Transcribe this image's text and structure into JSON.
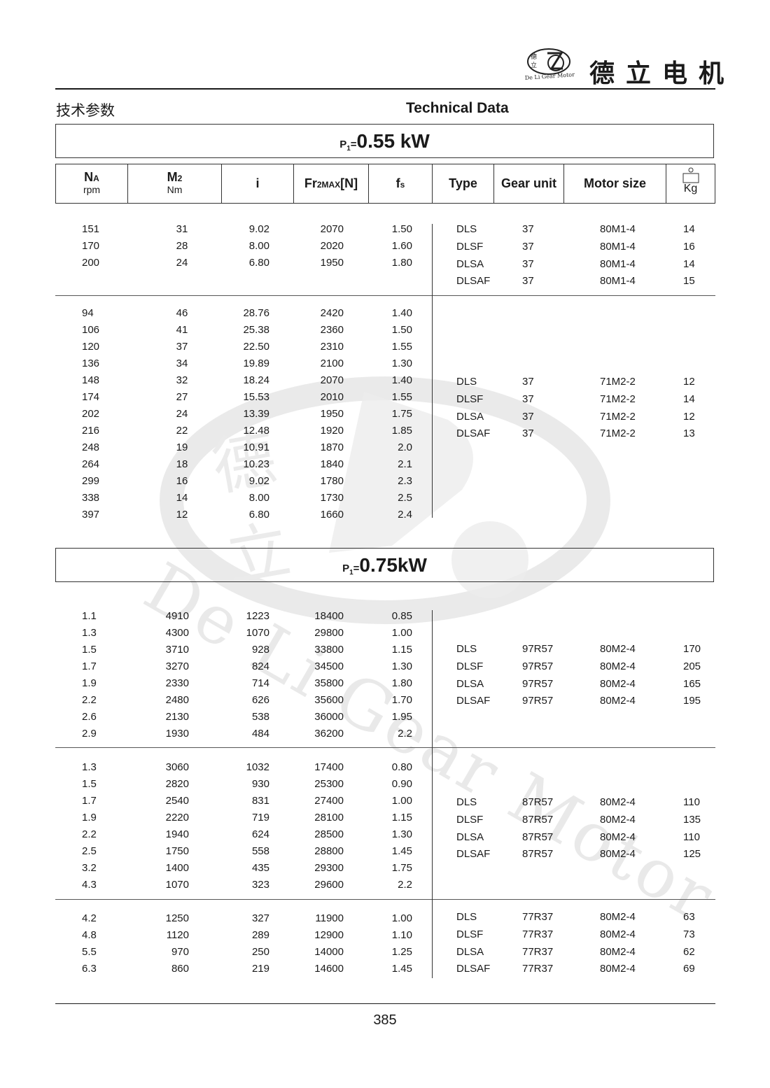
{
  "brand": {
    "name": "德立电机",
    "logo_text": "De Li Gear Motor",
    "logo_chars": "德立"
  },
  "header": {
    "title_cn": "技术参数",
    "title_en": "Technical Data"
  },
  "columns": {
    "na": {
      "main": "N",
      "sub_script": "A",
      "unit": "rpm"
    },
    "m2": {
      "main": "M",
      "sub_script": "2",
      "unit": "Nm"
    },
    "i": "i",
    "fr": {
      "main": "Fr",
      "sub_script": "2MAX",
      "suffix": "[N]"
    },
    "fs": {
      "main": "f",
      "sub_script": "s"
    },
    "type": "Type",
    "gear_unit": "Gear unit",
    "motor_size": "Motor size",
    "weight": "Kg"
  },
  "sections": [
    {
      "power": {
        "prefix": "P",
        "sub": "1",
        "eq": "=",
        "value": "0.55 kW"
      },
      "groups": [
        {
          "rows": [
            [
              "151",
              "31",
              "9.02",
              "2070",
              "1.50"
            ],
            [
              "170",
              "28",
              "8.00",
              "2020",
              "1.60"
            ],
            [
              "200",
              "24",
              "6.80",
              "1950",
              "1.80"
            ]
          ],
          "types": [
            [
              "DLS",
              "37",
              "80M1-4",
              "14"
            ],
            [
              "DLSF",
              "37",
              "80M1-4",
              "16"
            ],
            [
              "DLSA",
              "37",
              "80M1-4",
              "14"
            ],
            [
              "DLSAF",
              "37",
              "80M1-4",
              "15"
            ]
          ]
        },
        {
          "rows": [
            [
              "94",
              "46",
              "28.76",
              "2420",
              "1.40"
            ],
            [
              "106",
              "41",
              "25.38",
              "2360",
              "1.50"
            ],
            [
              "120",
              "37",
              "22.50",
              "2310",
              "1.55"
            ],
            [
              "136",
              "34",
              "19.89",
              "2100",
              "1.30"
            ],
            [
              "148",
              "32",
              "18.24",
              "2070",
              "1.40"
            ],
            [
              "174",
              "27",
              "15.53",
              "2010",
              "1.55"
            ],
            [
              "202",
              "24",
              "13.39",
              "1950",
              "1.75"
            ],
            [
              "216",
              "22",
              "12.48",
              "1920",
              "1.85"
            ],
            [
              "248",
              "19",
              "10.91",
              "1870",
              "2.0"
            ],
            [
              "264",
              "18",
              "10.23",
              "1840",
              "2.1"
            ],
            [
              "299",
              "16",
              "9.02",
              "1780",
              "2.3"
            ],
            [
              "338",
              "14",
              "8.00",
              "1730",
              "2.5"
            ],
            [
              "397",
              "12",
              "6.80",
              "1660",
              "2.4"
            ]
          ],
          "types": [
            [
              "DLS",
              "37",
              "71M2-2",
              "12"
            ],
            [
              "DLSF",
              "37",
              "71M2-2",
              "14"
            ],
            [
              "DLSA",
              "37",
              "71M2-2",
              "12"
            ],
            [
              "DLSAF",
              "37",
              "71M2-2",
              "13"
            ]
          ]
        }
      ]
    },
    {
      "power": {
        "prefix": "P",
        "sub": "1",
        "eq": "=",
        "value": "0.75kW"
      },
      "groups": [
        {
          "rows": [
            [
              "1.1",
              "4910",
              "1223",
              "18400",
              "0.85"
            ],
            [
              "1.3",
              "4300",
              "1070",
              "29800",
              "1.00"
            ],
            [
              "1.5",
              "3710",
              "928",
              "33800",
              "1.15"
            ],
            [
              "1.7",
              "3270",
              "824",
              "34500",
              "1.30"
            ],
            [
              "1.9",
              "2330",
              "714",
              "35800",
              "1.80"
            ],
            [
              "2.2",
              "2480",
              "626",
              "35600",
              "1.70"
            ],
            [
              "2.6",
              "2130",
              "538",
              "36000",
              "1.95"
            ],
            [
              "2.9",
              "1930",
              "484",
              "36200",
              "2.2"
            ]
          ],
          "types": [
            [
              "DLS",
              "97R57",
              "80M2-4",
              "170"
            ],
            [
              "DLSF",
              "97R57",
              "80M2-4",
              "205"
            ],
            [
              "DLSA",
              "97R57",
              "80M2-4",
              "165"
            ],
            [
              "DLSAF",
              "97R57",
              "80M2-4",
              "195"
            ]
          ]
        },
        {
          "rows": [
            [
              "1.3",
              "3060",
              "1032",
              "17400",
              "0.80"
            ],
            [
              "1.5",
              "2820",
              "930",
              "25300",
              "0.90"
            ],
            [
              "1.7",
              "2540",
              "831",
              "27400",
              "1.00"
            ],
            [
              "1.9",
              "2220",
              "719",
              "28100",
              "1.15"
            ],
            [
              "2.2",
              "1940",
              "624",
              "28500",
              "1.30"
            ],
            [
              "2.5",
              "1750",
              "558",
              "28800",
              "1.45"
            ],
            [
              "3.2",
              "1400",
              "435",
              "29300",
              "1.75"
            ],
            [
              "4.3",
              "1070",
              "323",
              "29600",
              "2.2"
            ]
          ],
          "types": [
            [
              "DLS",
              "87R57",
              "80M2-4",
              "110"
            ],
            [
              "DLSF",
              "87R57",
              "80M2-4",
              "135"
            ],
            [
              "DLSA",
              "87R57",
              "80M2-4",
              "110"
            ],
            [
              "DLSAF",
              "87R57",
              "80M2-4",
              "125"
            ]
          ]
        },
        {
          "rows": [
            [
              "4.2",
              "1250",
              "327",
              "11900",
              "1.00"
            ],
            [
              "4.8",
              "1120",
              "289",
              "12900",
              "1.10"
            ],
            [
              "5.5",
              "970",
              "250",
              "14000",
              "1.25"
            ],
            [
              "6.3",
              "860",
              "219",
              "14600",
              "1.45"
            ]
          ],
          "types": [
            [
              "DLS",
              "77R37",
              "80M2-4",
              "63"
            ],
            [
              "DLSF",
              "77R37",
              "80M2-4",
              "73"
            ],
            [
              "DLSA",
              "77R37",
              "80M2-4",
              "62"
            ],
            [
              "DLSAF",
              "77R37",
              "80M2-4",
              "69"
            ]
          ]
        }
      ]
    }
  ],
  "footer": {
    "page_number": "385"
  }
}
